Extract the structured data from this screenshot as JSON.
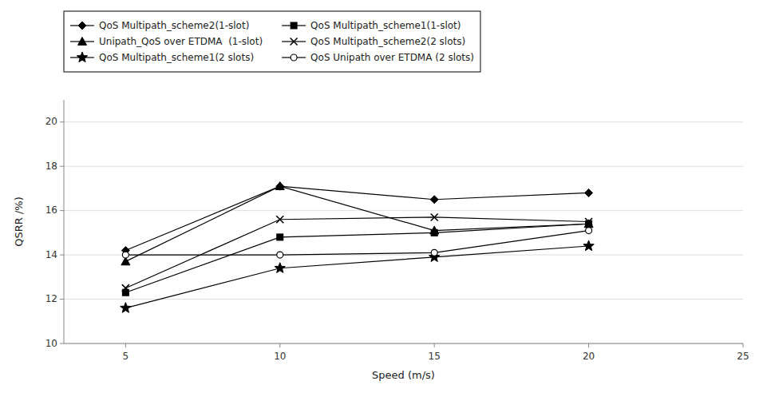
{
  "chart_data": {
    "type": "line",
    "x": [
      5,
      10,
      15,
      20
    ],
    "series": [
      {
        "name": "QoS Multipath_scheme2(1-slot)",
        "values": [
          14.2,
          17.1,
          16.5,
          16.8
        ],
        "color": "#000000",
        "marker": "diamond",
        "line_style": "solid"
      },
      {
        "name": "Unipath_QoS over ETDMA  (1-slot)",
        "values": [
          13.7,
          17.1,
          15.1,
          15.4
        ],
        "color": "#000000",
        "marker": "triangle",
        "line_style": "solid"
      },
      {
        "name": "QoS Multipath_scheme1(2 slots)",
        "values": [
          11.6,
          13.4,
          13.9,
          14.4
        ],
        "color": "#000000",
        "marker": "star",
        "line_style": "solid"
      },
      {
        "name": "QoS Multipath_scheme1(1-slot)",
        "values": [
          12.3,
          14.8,
          15.0,
          15.4
        ],
        "color": "#000000",
        "marker": "square",
        "line_style": "solid"
      },
      {
        "name": "QoS Multipath_scheme2(2 slots)",
        "values": [
          12.5,
          15.6,
          15.7,
          15.5
        ],
        "color": "#000000",
        "marker": "x",
        "line_style": "solid"
      },
      {
        "name": "QoS Unipath over ETDMA (2 slots)",
        "values": [
          14.0,
          14.0,
          14.1,
          15.1
        ],
        "color": "#000000",
        "marker": "circle-open",
        "line_style": "solid"
      }
    ],
    "x_label": "Speed (m/s)",
    "y_label": "QSRR /%)",
    "xlim": [
      3,
      25
    ],
    "ylim": [
      10,
      21
    ],
    "xticks": [
      5,
      10,
      15,
      20,
      25
    ],
    "yticks": [
      10,
      12,
      14,
      16,
      18,
      20
    ],
    "grid": "y",
    "legend": "top-left"
  }
}
